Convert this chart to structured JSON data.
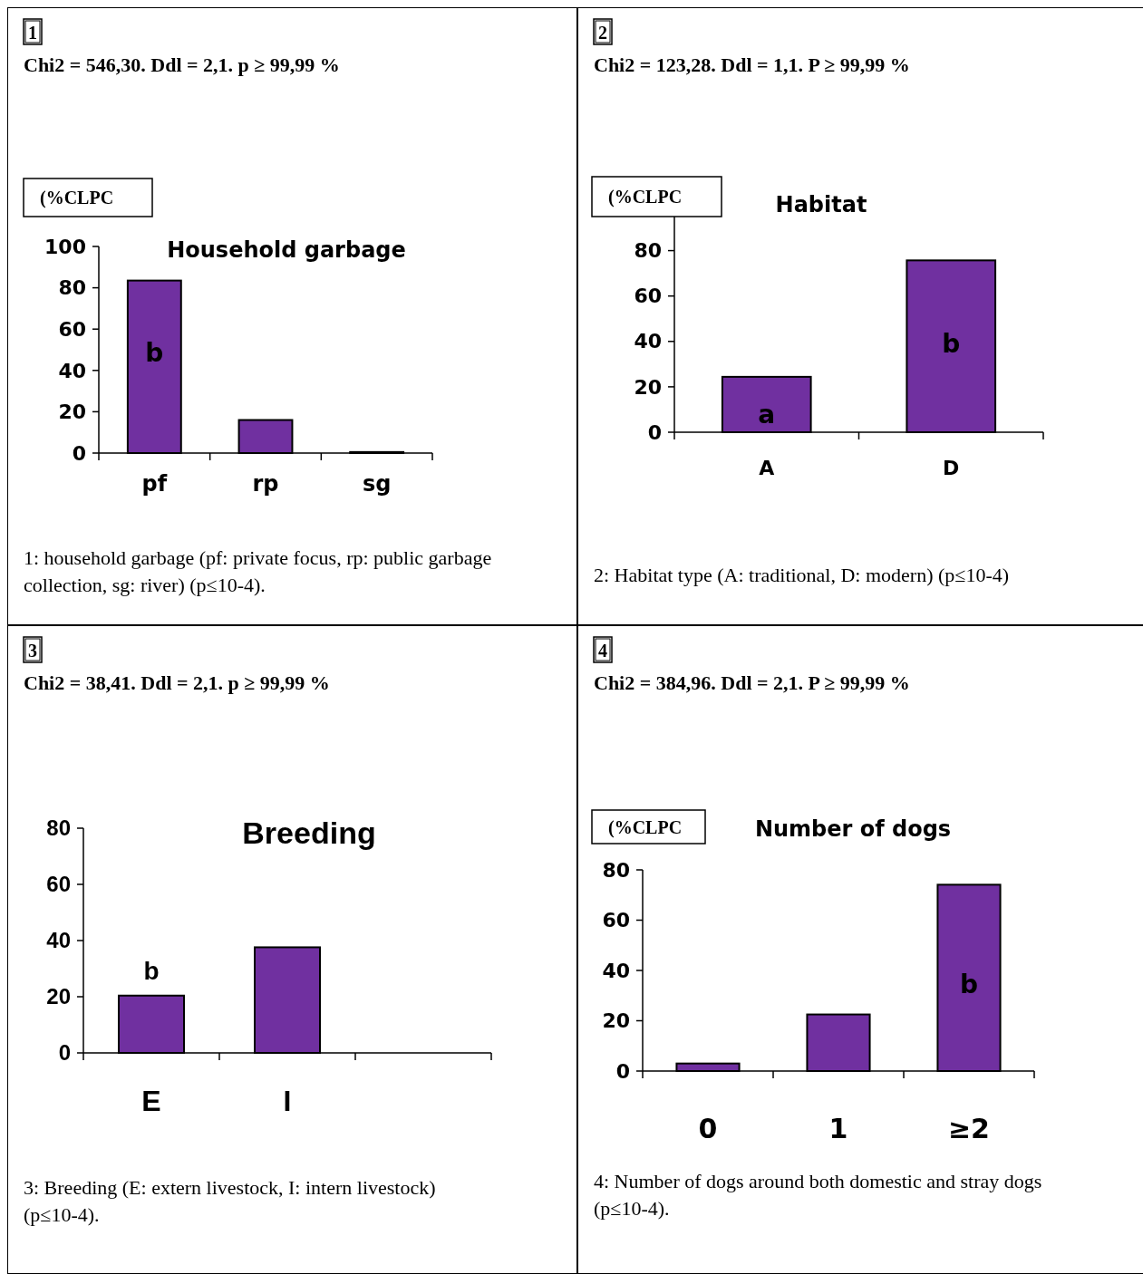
{
  "chart_data": [
    {
      "type": "bar",
      "title": "Household garbage",
      "subtitle": "Chi2 = 546,30. Ddl = 2,1. p ≥ 99,99 %",
      "ylabel": "(%CLPC",
      "categories": [
        "pf",
        "rp",
        "sg"
      ],
      "values": [
        83.5,
        16,
        0.5
      ],
      "color": "#7030a0",
      "ylim": [
        0,
        100
      ],
      "yticks": [
        0,
        20,
        40,
        60,
        80,
        100
      ],
      "grid": false,
      "annotations": [
        "1",
        "1: household garbage (pf: private focus, rp: public garbage collection, sg: river) (p≤10-4).",
        "b"
      ]
    },
    {
      "type": "bar",
      "title": "Habitat",
      "subtitle": "Chi2 = 123,28. Ddl = 1,1. P ≥ 99,99 %",
      "ylabel": "(%CLPC",
      "categories": [
        "A",
        "D"
      ],
      "values": [
        24.4,
        75.7
      ],
      "color": "#7030a0",
      "ylim": [
        0,
        95
      ],
      "yticks": [
        0,
        20,
        40,
        60,
        80
      ],
      "grid": false,
      "annotations": [
        "2",
        "2: Habitat type (A: traditional, D: modern) (p≤10-4)",
        "a",
        "b"
      ]
    },
    {
      "type": "bar",
      "title": "Breeding",
      "subtitle": "Chi2 = 38,41. Ddl = 2,1. p ≥ 99,99 %",
      "categories": [
        "E",
        "I",
        null
      ],
      "values": [
        20.4,
        37.6,
        null
      ],
      "color": "#7030a0",
      "ylim": [
        0,
        80
      ],
      "yticks": [
        0,
        20,
        40,
        60,
        80
      ],
      "grid": false,
      "annotations": [
        "3",
        "3: Breeding (E: extern livestock, I: intern livestock) (p≤10-4).",
        "b"
      ]
    },
    {
      "type": "bar",
      "title": "Number of dogs",
      "subtitle": "Chi2 = 384,96. Ddl = 2,1. P ≥ 99,99 %",
      "ylabel": "(%CLPC",
      "categories": [
        "0",
        "1",
        "≥2"
      ],
      "values": [
        3,
        22.5,
        74.1
      ],
      "color": "#7030a0",
      "ylim": [
        0,
        80
      ],
      "yticks": [
        0,
        20,
        40,
        60,
        80
      ],
      "grid": false,
      "annotations": [
        "4",
        "4: Number of dogs around both domestic and stray dogs (p≤10-4).",
        "b"
      ]
    }
  ]
}
